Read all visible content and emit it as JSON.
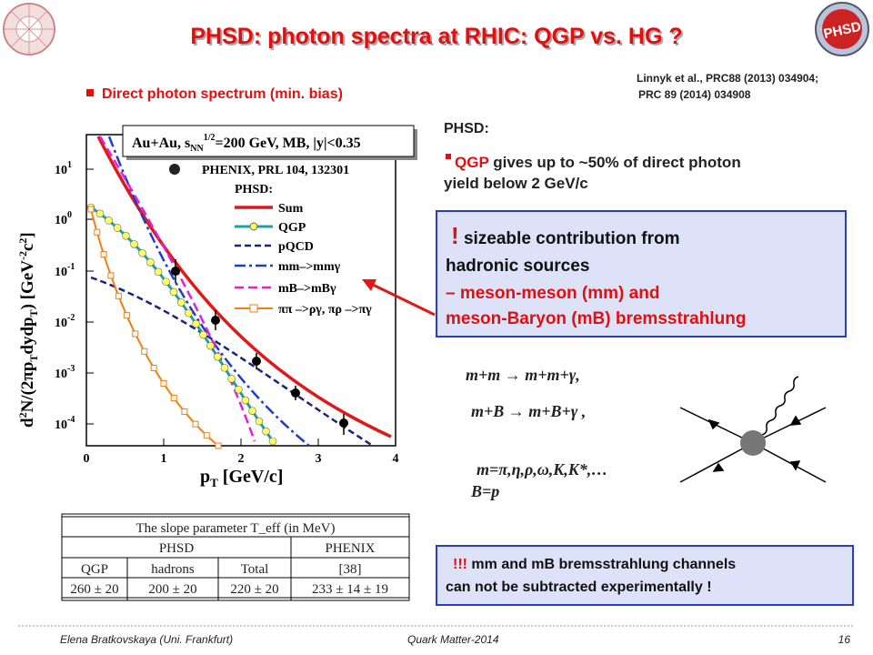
{
  "header": {
    "title": "PHSD: photon spectra at RHIC: QGP vs. HG ?",
    "logo": "PHSD",
    "reference": [
      "Linnyk et al.,  PRC88 (2013) 034904;",
      "PRC 89 (2014) 034908"
    ]
  },
  "bullet": "Direct photon spectrum (min. bias)",
  "plot": {
    "info": {
      "a": "Au+Au, s",
      "sub": "NN",
      "sup": "1/2",
      "b": "=200 GeV, MB, |y|<0.35"
    },
    "legend": [
      "PHENIX, PRL 104, 132301",
      "PHSD:",
      "Sum",
      "QGP",
      "pQCD",
      "mm–>mmγ",
      "mB–>mBγ",
      "ππ –>ργ, πρ –>πγ"
    ],
    "xlabel": {
      "a": "p",
      "sub": "T",
      "b": " [GeV/c]"
    },
    "ylabel": {
      "a": "d",
      "sup1": "2",
      "b": "N/(2πp",
      "sub1": "T",
      "c": "dydp",
      "sub2": "T",
      "d": ")  [GeV",
      "sup2": "-2",
      "e": "c",
      "sup3": "2",
      "f": "]"
    },
    "xticks": [
      "0",
      "1",
      "2",
      "3",
      "4"
    ],
    "yticks": [
      {
        "base": "10",
        "exp": "1"
      },
      {
        "base": "10",
        "exp": "0"
      },
      {
        "base": "10",
        "exp": "-1"
      },
      {
        "base": "10",
        "exp": "-2"
      },
      {
        "base": "10",
        "exp": "-3"
      },
      {
        "base": "10",
        "exp": "-4"
      }
    ]
  },
  "right": {
    "heading": "PHSD:",
    "point": {
      "highlight": "QGP",
      "text": [
        " gives up to ~50% of direct photon",
        "yield below 2 GeV/c"
      ]
    }
  },
  "box1": {
    "mark": "!",
    "lines": [
      " sizeable contribution from",
      "hadronic sources",
      "– meson-meson (mm)  and",
      "meson-Baryon (mB) bremsstrahlung"
    ]
  },
  "formulas": [
    "m+m → m+m+γ,",
    "m+B → m+B+γ ,",
    "m=π,η,ρ,ω,K,K*,…",
    "B=p"
  ],
  "table": {
    "caption": "The slope parameter T_eff (in MeV)",
    "groups": [
      "PHSD",
      "PHENIX"
    ],
    "columns": [
      "QGP",
      "hadrons",
      "Total",
      "[38]"
    ],
    "row": [
      "260 ± 20",
      "200 ± 20",
      "220 ± 20",
      "233 ± 14 ± 19"
    ]
  },
  "box2": {
    "mark": "!!!",
    "lines": [
      " mm and mB bremsstrahlung channels",
      "can not be subtracted experimentally"
    ],
    "end": " !"
  },
  "footer": {
    "author": "Elena Bratkovskaya  (Uni. Frankfurt)",
    "event": "Quark Matter-2014",
    "page": "16"
  }
}
